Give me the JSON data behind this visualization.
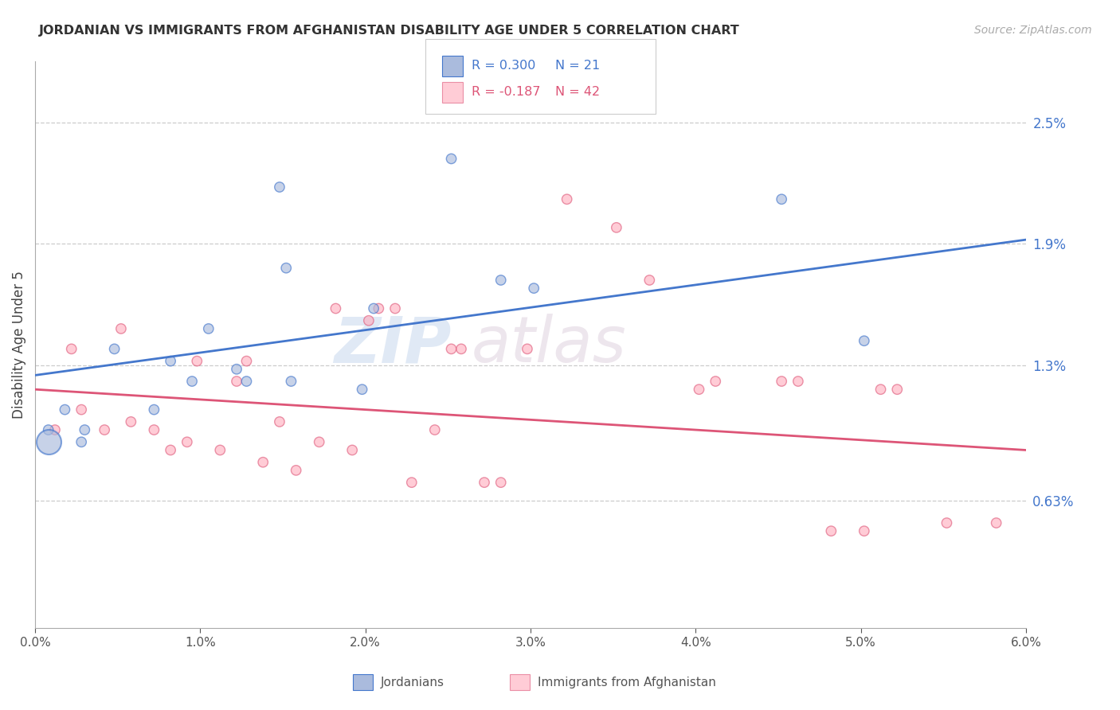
{
  "title": "JORDANIAN VS IMMIGRANTS FROM AFGHANISTAN DISABILITY AGE UNDER 5 CORRELATION CHART",
  "source": "Source: ZipAtlas.com",
  "ylabel": "Disability Age Under 5",
  "xlabel_ticks": [
    "0.0%",
    "1.0%",
    "2.0%",
    "3.0%",
    "4.0%",
    "5.0%",
    "6.0%"
  ],
  "xlabel_vals": [
    0.0,
    1.0,
    2.0,
    3.0,
    4.0,
    5.0,
    6.0
  ],
  "ytick_labels": [
    "2.5%",
    "1.9%",
    "1.3%",
    "0.63%"
  ],
  "ytick_vals": [
    2.5,
    1.9,
    1.3,
    0.63
  ],
  "xmin": 0.0,
  "xmax": 6.0,
  "ymin": 0.0,
  "ymax": 2.8,
  "blue_fill": "#aabbdd",
  "blue_edge": "#4477CC",
  "pink_fill": "#ffaabb",
  "pink_edge": "#DD5577",
  "blue_line_color": "#4477CC",
  "pink_line_color": "#DD5577",
  "legend_r_blue": "R = 0.300",
  "legend_n_blue": "N = 21",
  "legend_r_pink": "R = -0.187",
  "legend_n_pink": "N = 42",
  "watermark_zip": "ZIP",
  "watermark_atlas": "atlas",
  "blue_scatter_x": [
    0.48,
    1.05,
    1.48,
    1.52,
    2.05,
    0.18,
    0.28,
    0.3,
    0.82,
    0.95,
    1.22,
    1.55,
    2.52,
    3.02,
    4.52,
    5.02,
    1.98,
    0.72,
    1.28,
    2.82,
    0.08
  ],
  "blue_scatter_y": [
    1.38,
    1.48,
    2.18,
    1.78,
    1.58,
    1.08,
    0.92,
    0.98,
    1.32,
    1.22,
    1.28,
    1.22,
    2.32,
    1.68,
    2.12,
    1.42,
    1.18,
    1.08,
    1.22,
    1.72,
    0.98
  ],
  "blue_scatter_size": [
    80,
    80,
    80,
    80,
    80,
    80,
    80,
    80,
    80,
    80,
    80,
    80,
    80,
    80,
    80,
    80,
    80,
    80,
    80,
    80,
    80
  ],
  "blue_large_x": 0.08,
  "blue_large_y": 0.92,
  "blue_large_size": 500,
  "pink_scatter_x": [
    0.12,
    0.22,
    0.28,
    0.42,
    0.52,
    0.58,
    0.72,
    0.82,
    0.92,
    0.98,
    1.12,
    1.22,
    1.28,
    1.38,
    1.48,
    1.58,
    1.72,
    1.82,
    1.92,
    2.02,
    2.08,
    2.18,
    2.28,
    2.42,
    2.52,
    2.58,
    2.72,
    2.82,
    2.98,
    3.22,
    3.52,
    3.72,
    4.02,
    4.12,
    4.52,
    4.62,
    4.82,
    5.02,
    5.12,
    5.22,
    5.52,
    5.82
  ],
  "pink_scatter_y": [
    0.98,
    1.38,
    1.08,
    0.98,
    1.48,
    1.02,
    0.98,
    0.88,
    0.92,
    1.32,
    0.88,
    1.22,
    1.32,
    0.82,
    1.02,
    0.78,
    0.92,
    1.58,
    0.88,
    1.52,
    1.58,
    1.58,
    0.72,
    0.98,
    1.38,
    1.38,
    0.72,
    0.72,
    1.38,
    2.12,
    1.98,
    1.72,
    1.18,
    1.22,
    1.22,
    1.22,
    0.48,
    0.48,
    1.18,
    1.18,
    0.52,
    0.52
  ],
  "pink_scatter_size": [
    80,
    80,
    80,
    80,
    80,
    80,
    80,
    80,
    80,
    80,
    80,
    80,
    80,
    80,
    80,
    80,
    80,
    80,
    80,
    80,
    80,
    80,
    80,
    80,
    80,
    80,
    80,
    80,
    80,
    80,
    80,
    80,
    80,
    80,
    80,
    80,
    80,
    80,
    80,
    80,
    80,
    80
  ],
  "blue_line_y_start": 1.25,
  "blue_line_y_end": 1.92,
  "pink_line_y_start": 1.18,
  "pink_line_y_end": 0.88,
  "background_color": "#ffffff",
  "grid_color": "#cccccc",
  "title_color": "#333333",
  "axis_label_color": "#444444",
  "ytick_color": "#4477CC",
  "legend_blue_r_color": "#4477CC",
  "legend_pink_r_color": "#DD5577"
}
